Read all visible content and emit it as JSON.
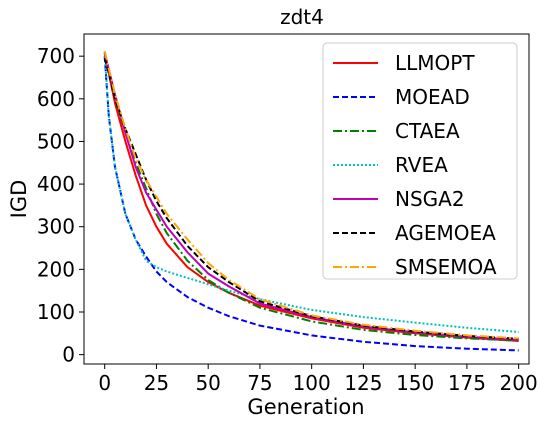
{
  "chart_data": {
    "type": "line",
    "title": "zdt4",
    "xlabel": "Generation",
    "ylabel": "IGD",
    "xlim": [
      -10,
      205
    ],
    "ylim": [
      -22,
      752
    ],
    "xticks": [
      0,
      25,
      50,
      75,
      100,
      125,
      150,
      175,
      200
    ],
    "yticks": [
      0,
      100,
      200,
      300,
      400,
      500,
      600,
      700
    ],
    "grid": false,
    "legend_position": "top-right",
    "series": [
      {
        "name": "LLMOPT",
        "color": "#ff0000",
        "dash": "solid",
        "x": [
          0,
          2,
          5,
          10,
          15,
          20,
          25,
          30,
          40,
          50,
          60,
          75,
          100,
          125,
          150,
          175,
          200
        ],
        "y": [
          705,
          660,
          590,
          500,
          420,
          350,
          300,
          260,
          205,
          170,
          145,
          115,
          85,
          63,
          50,
          40,
          32
        ]
      },
      {
        "name": "MOEAD",
        "color": "#0000ff",
        "dash": "dashed",
        "x": [
          0,
          2,
          5,
          10,
          15,
          20,
          25,
          30,
          40,
          50,
          60,
          75,
          100,
          125,
          150,
          175,
          200
        ],
        "y": [
          700,
          560,
          440,
          330,
          270,
          230,
          195,
          170,
          135,
          110,
          90,
          68,
          45,
          30,
          20,
          14,
          10
        ]
      },
      {
        "name": "CTAEA",
        "color": "#008000",
        "dash": "dashdot",
        "x": [
          0,
          2,
          5,
          10,
          15,
          20,
          25,
          30,
          40,
          50,
          60,
          75,
          100,
          125,
          150,
          175,
          200
        ],
        "y": [
          710,
          670,
          600,
          520,
          450,
          390,
          330,
          285,
          220,
          175,
          145,
          110,
          78,
          58,
          46,
          38,
          33
        ]
      },
      {
        "name": "RVEA",
        "color": "#00bfbf",
        "dash": "dotted",
        "x": [
          0,
          2,
          5,
          10,
          15,
          20,
          25,
          30,
          40,
          50,
          60,
          75,
          100,
          125,
          150,
          175,
          200
        ],
        "y": [
          710,
          560,
          440,
          330,
          270,
          220,
          205,
          195,
          180,
          165,
          150,
          130,
          105,
          88,
          75,
          63,
          53
        ]
      },
      {
        "name": "NSGA2",
        "color": "#bf00bf",
        "dash": "solid",
        "x": [
          0,
          2,
          5,
          10,
          15,
          20,
          25,
          30,
          40,
          50,
          60,
          75,
          100,
          125,
          150,
          175,
          200
        ],
        "y": [
          705,
          670,
          610,
          520,
          440,
          380,
          340,
          300,
          240,
          190,
          160,
          120,
          88,
          66,
          52,
          42,
          35
        ]
      },
      {
        "name": "AGEMOEA",
        "color": "#000000",
        "dash": "dashed",
        "x": [
          0,
          2,
          5,
          10,
          15,
          20,
          25,
          30,
          40,
          50,
          60,
          75,
          100,
          125,
          150,
          175,
          200
        ],
        "y": [
          695,
          660,
          600,
          530,
          470,
          410,
          360,
          320,
          255,
          205,
          170,
          125,
          90,
          68,
          54,
          44,
          37
        ]
      },
      {
        "name": "SMSEMOA",
        "color": "#ffa500",
        "dash": "dashdot",
        "x": [
          0,
          2,
          5,
          10,
          15,
          20,
          25,
          30,
          40,
          50,
          60,
          75,
          100,
          125,
          150,
          175,
          200
        ],
        "y": [
          712,
          670,
          610,
          530,
          460,
          410,
          370,
          330,
          270,
          215,
          175,
          130,
          92,
          70,
          56,
          45,
          38
        ]
      }
    ]
  }
}
